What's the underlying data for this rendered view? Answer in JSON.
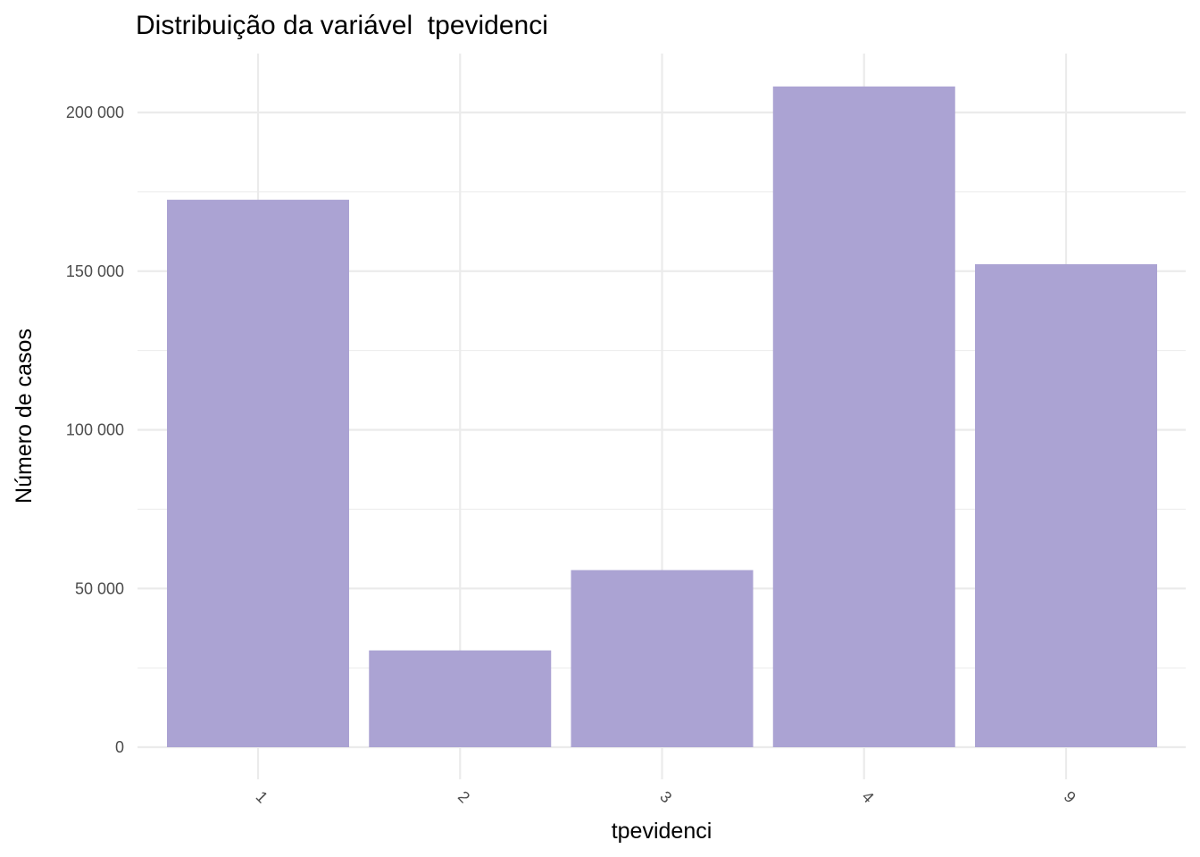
{
  "chart_data": {
    "type": "bar",
    "title": "Distribuição da variável  tpevidenci",
    "xlabel": "tpevidenci",
    "ylabel": "Número de casos",
    "categories": [
      "1",
      "2",
      "3",
      "4",
      "9"
    ],
    "values": [
      172500,
      30500,
      55800,
      208200,
      152200
    ],
    "ylim": [
      0,
      220000
    ],
    "y_ticks": [
      0,
      50000,
      100000,
      150000,
      200000
    ],
    "y_tick_labels": [
      "0",
      "50 000",
      "100 000",
      "150 000",
      "200 000"
    ],
    "bar_color": "#ABA3D3",
    "grid": true,
    "legend": "none"
  }
}
